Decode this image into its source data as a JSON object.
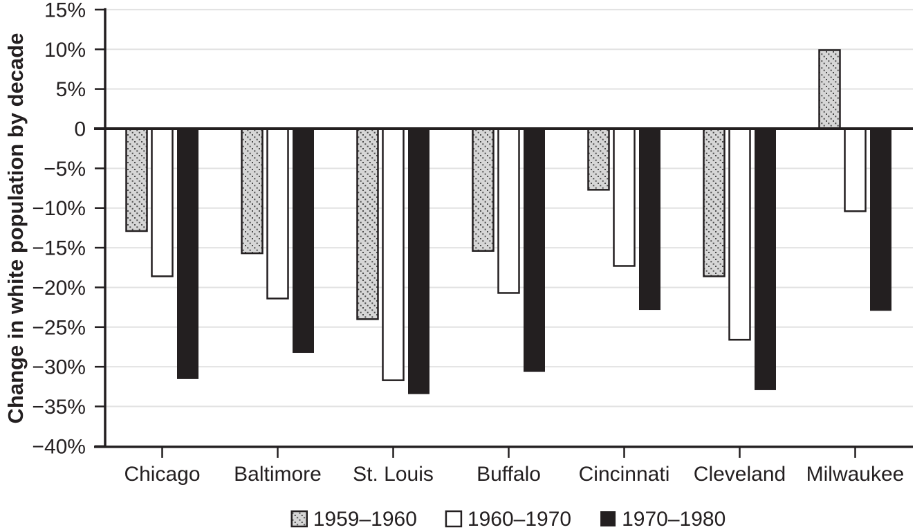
{
  "chart_data": {
    "type": "bar",
    "title": "",
    "xlabel": "",
    "ylabel": "Change in white population by decade",
    "categories": [
      "Chicago",
      "Baltimore",
      "St. Louis",
      "Buffalo",
      "Cincinnati",
      "Cleveland",
      "Milwaukee"
    ],
    "series": [
      {
        "name": "1959–1960",
        "style": "hatched",
        "values": [
          -12.9,
          -15.7,
          -24.0,
          -15.4,
          -7.7,
          -18.6,
          9.9
        ]
      },
      {
        "name": "1960–1970",
        "style": "white",
        "values": [
          -18.6,
          -21.4,
          -31.7,
          -20.7,
          -17.3,
          -26.6,
          -10.4
        ]
      },
      {
        "name": "1970–1980",
        "style": "black",
        "values": [
          -31.5,
          -28.2,
          -33.4,
          -30.6,
          -22.8,
          -32.9,
          -22.9
        ]
      }
    ],
    "ylim": [
      -40,
      15
    ],
    "ytick_values": [
      15,
      10,
      5,
      0,
      -5,
      -10,
      -15,
      -20,
      -25,
      -30,
      -35,
      -40
    ],
    "ytick_labels": [
      "15%",
      "10%",
      "5%",
      "0",
      "−5%",
      "−10%",
      "−15%",
      "−20%",
      "−25%",
      "−30%",
      "−35%",
      "−40%"
    ],
    "grid": true,
    "legend_position": "bottom",
    "colors": {
      "axis": "#231f20",
      "text": "#231f20",
      "gridline": "#e2e2e2",
      "zero_line": "#231f20",
      "black_fill": "#231f20",
      "white_fill": "#ffffff",
      "bar_border": "#231f20",
      "hatch_fill": "#d6d6d6",
      "hatch_dot": "#4a4a4a"
    }
  }
}
